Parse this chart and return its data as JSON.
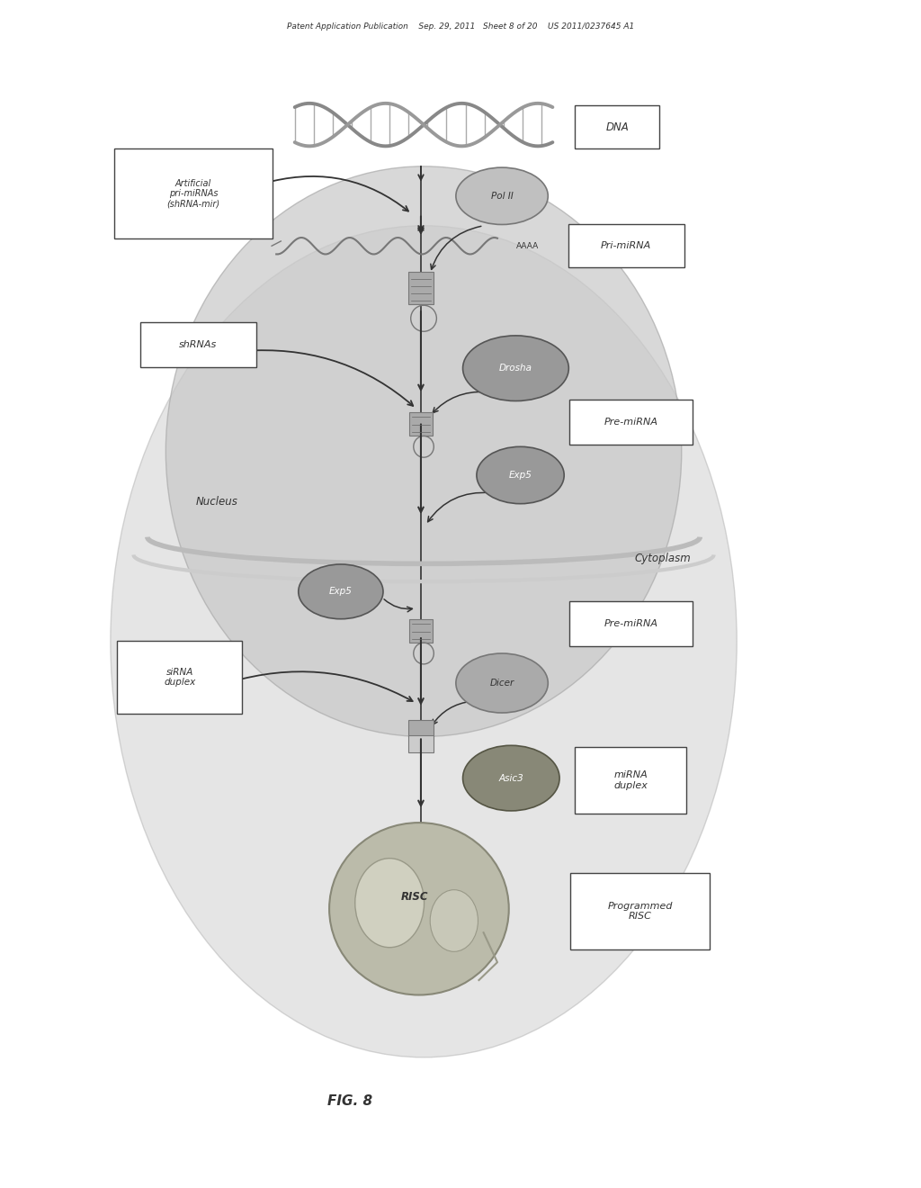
{
  "bg_color": "#ffffff",
  "header_text": "Patent Application Publication    Sep. 29, 2011   Sheet 8 of 20    US 2011/0237645 A1",
  "fig_label": "FIG. 8",
  "dna_label": "DNA",
  "pol_label": "Pol II",
  "pri_mirna_label": "Pri-miRNA",
  "aaaa_label": "AAAA",
  "shrna_label": "shRNAs",
  "artificial_label": "Artificial\npri-miRNAs\n(shRNA-mir)",
  "drosha_label": "Drosha",
  "pre_mirna_label": "Pre-miRNA",
  "expo_label": "Exp5",
  "nucleus_label": "Nucleus",
  "cytoplasm_label": "Cytoplasm",
  "expo2_label": "Exp5",
  "pre_mirna2_label": "Pre-miRNA",
  "sirna_label": "siRNA\nduplex",
  "dicer_label": "Dicer",
  "asic3_label": "Asic3",
  "mirna_duplex_label": "miRNA\nduplex",
  "risc_label": "RISC",
  "prog_risc_label": "Programmed\nRISC",
  "box_color": "#ffffff",
  "box_edge": "#444444",
  "ellipse_gray": "#aaaaaa",
  "ellipse_dark": "#888888",
  "ellipse_edge": "#666666",
  "arrow_color": "#333333",
  "text_color": "#333333",
  "nucleus_fill": "#cccccc",
  "cytoplasm_fill": "#d8d8d8",
  "membrane_color": "#bbbbbb"
}
